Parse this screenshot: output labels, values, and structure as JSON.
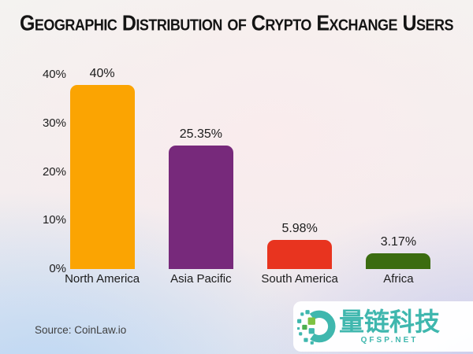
{
  "title": "Geographic Distribution of Crypto Exchange Users",
  "chart_data": {
    "type": "bar",
    "categories": [
      "North America",
      "Asia Pacific",
      "South America",
      "Africa"
    ],
    "values": [
      40,
      25.35,
      5.98,
      3.17
    ],
    "value_labels": [
      "40%",
      "25.35%",
      "5.98%",
      "3.17%"
    ],
    "bar_colors": [
      "#FBA402",
      "#77297B",
      "#E8341F",
      "#3B6C10"
    ],
    "title": "Geographic Distribution of Crypto Exchange Users",
    "xlabel": "",
    "ylabel": "",
    "ylim": [
      0,
      40
    ],
    "yticks": [
      "0%",
      "10%",
      "20%",
      "30%",
      "40%"
    ],
    "ytick_values": [
      0,
      10,
      20,
      30,
      40
    ],
    "grid": false,
    "legend": false
  },
  "source": {
    "label": "Source: CoinLaw.io"
  },
  "watermark": {
    "brand": "量链科技",
    "domain": "QFSP.NET",
    "accent_teal": "#3FB7AE",
    "accent_green": "#7DC242",
    "accent_green_dark": "#4CAF50"
  }
}
